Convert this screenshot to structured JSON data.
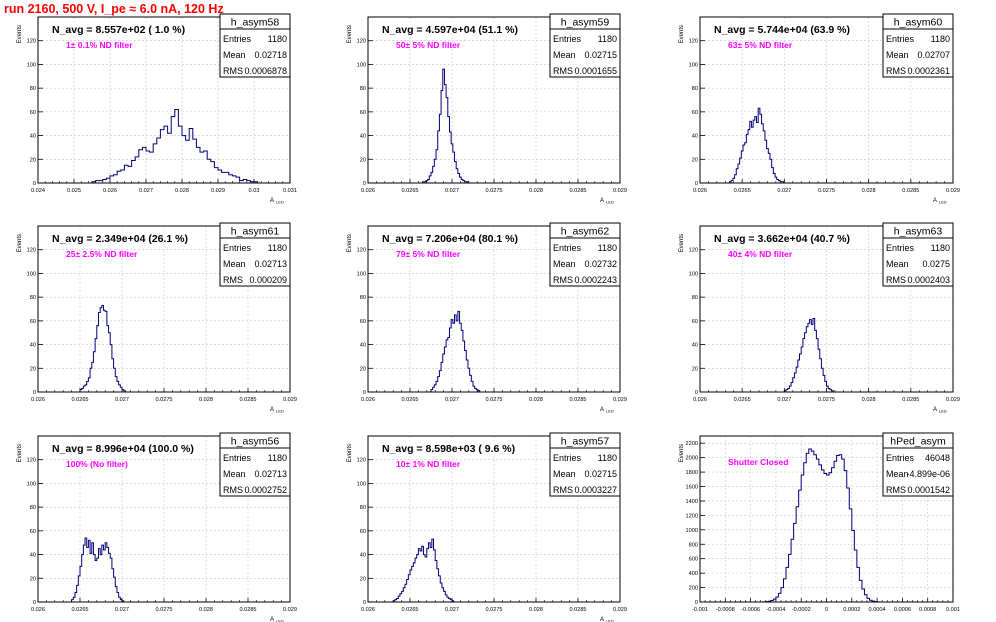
{
  "page": {
    "title": "run 2160,   500 V, I_pe ≈ 6.0 nA, 120 Hz"
  },
  "colors": {
    "histogram_line": "#00007a",
    "annotation_pink": "#ff00ff",
    "title_red": "#ff0000",
    "grid": "#c8c8c8",
    "frame": "#000000"
  },
  "chart_data": [
    {
      "type": "histogram",
      "name": "h_asym58",
      "nlabel": "N_avg = 8.557e+02 ( 1.0 %)",
      "filter": "1± 0.1% ND filter",
      "ylabel": "Events",
      "xlabel": "A",
      "xlabel_sub": "LED",
      "stats": {
        "entries": "1180",
        "mean": "0.02718",
        "rms": "0.0006878"
      },
      "stats_labels": [
        "Entries",
        "Mean",
        "RMS"
      ],
      "xlim": [
        0.024,
        0.031
      ],
      "ylim": [
        0,
        140
      ],
      "xticks": [
        0.024,
        0.025,
        0.026,
        0.027,
        0.028,
        0.029,
        0.03,
        0.031
      ],
      "xtick_labels": [
        "0.024",
        "0.025",
        "0.026",
        "0.027",
        "0.028",
        "0.029",
        "0.03",
        "0.031"
      ],
      "yticks": [
        0,
        20,
        40,
        60,
        80,
        100,
        120
      ],
      "ytick_labels": [
        "0",
        "20",
        "40",
        "60",
        "80",
        "100",
        "120"
      ],
      "bin_start": 0.0255,
      "bin_width": 0.0001,
      "counts": [
        1,
        2,
        2,
        3,
        4,
        6,
        7,
        10,
        11,
        15,
        14,
        19,
        22,
        28,
        30,
        27,
        26,
        33,
        38,
        45,
        48,
        42,
        56,
        62,
        48,
        40,
        36,
        46,
        37,
        30,
        26,
        27,
        20,
        18,
        13,
        11,
        9,
        9,
        7,
        6,
        5,
        2,
        3,
        2,
        1,
        1
      ]
    },
    {
      "type": "histogram",
      "name": "h_asym59",
      "nlabel": "N_avg = 4.597e+04 (51.1 %)",
      "filter": "50± 5% ND filter",
      "ylabel": "Events",
      "xlabel": "A",
      "xlabel_sub": "LED",
      "stats": {
        "entries": "1180",
        "mean": "0.02715",
        "rms": "0.0001655"
      },
      "stats_labels": [
        "Entries",
        "Mean",
        "RMS"
      ],
      "xlim": [
        0.026,
        0.029
      ],
      "ylim": [
        0,
        140
      ],
      "xticks": [
        0.026,
        0.0265,
        0.027,
        0.0275,
        0.028,
        0.0285,
        0.029
      ],
      "xtick_labels": [
        "0.026",
        "0.0265",
        "0.027",
        "0.0275",
        "0.028",
        "0.0285",
        "0.029"
      ],
      "yticks": [
        0,
        20,
        40,
        60,
        80,
        100,
        120
      ],
      "ytick_labels": [
        "0",
        "20",
        "40",
        "60",
        "80",
        "100",
        "120"
      ],
      "bin_start": 0.02665,
      "bin_width": 2e-05,
      "counts": [
        1,
        1,
        2,
        3,
        6,
        9,
        14,
        20,
        28,
        44,
        58,
        78,
        96,
        83,
        72,
        56,
        43,
        33,
        26,
        18,
        12,
        8,
        5,
        3,
        2,
        1,
        1
      ]
    },
    {
      "type": "histogram",
      "name": "h_asym60",
      "nlabel": "N_avg = 5.744e+04 (63.9 %)",
      "filter": "63± 5% ND filter",
      "ylabel": "Events",
      "xlabel": "A",
      "xlabel_sub": "LED",
      "stats": {
        "entries": "1180",
        "mean": "0.02707",
        "rms": "0.0002361"
      },
      "stats_labels": [
        "Entries",
        "Mean",
        "RMS"
      ],
      "xlim": [
        0.026,
        0.029
      ],
      "ylim": [
        0,
        140
      ],
      "xticks": [
        0.026,
        0.0265,
        0.027,
        0.0275,
        0.028,
        0.0285,
        0.029
      ],
      "xtick_labels": [
        "0.026",
        "0.0265",
        "0.027",
        "0.0275",
        "0.028",
        "0.0285",
        "0.029"
      ],
      "yticks": [
        0,
        20,
        40,
        60,
        80,
        100,
        120
      ],
      "ytick_labels": [
        "0",
        "20",
        "40",
        "60",
        "80",
        "100",
        "120"
      ],
      "bin_start": 0.02635,
      "bin_width": 2e-05,
      "counts": [
        1,
        2,
        4,
        7,
        12,
        16,
        21,
        27,
        32,
        34,
        41,
        45,
        52,
        47,
        53,
        56,
        51,
        63,
        58,
        50,
        44,
        36,
        29,
        25,
        20,
        13,
        8,
        5,
        3,
        2,
        1,
        1
      ]
    },
    {
      "type": "histogram",
      "name": "h_asym61",
      "nlabel": "N_avg = 2.349e+04 (26.1 %)",
      "filter": "25± 2.5% ND filter",
      "ylabel": "Events",
      "xlabel": "A",
      "xlabel_sub": "LED",
      "stats": {
        "entries": "1180",
        "mean": "0.02713",
        "rms": "0.000209"
      },
      "stats_labels": [
        "Entries",
        "Mean",
        "RMS"
      ],
      "xlim": [
        0.026,
        0.029
      ],
      "ylim": [
        0,
        140
      ],
      "xticks": [
        0.026,
        0.0265,
        0.027,
        0.0275,
        0.028,
        0.0285,
        0.029
      ],
      "xtick_labels": [
        "0.026",
        "0.0265",
        "0.027",
        "0.0275",
        "0.028",
        "0.0285",
        "0.029"
      ],
      "yticks": [
        0,
        20,
        40,
        60,
        80,
        100,
        120
      ],
      "ytick_labels": [
        "0",
        "20",
        "40",
        "60",
        "80",
        "100",
        "120"
      ],
      "bin_start": 0.0265,
      "bin_width": 2e-05,
      "counts": [
        2,
        3,
        5,
        6,
        9,
        12,
        20,
        25,
        34,
        45,
        56,
        67,
        71,
        73,
        69,
        68,
        56,
        50,
        40,
        28,
        20,
        13,
        9,
        6,
        4,
        2,
        1
      ]
    },
    {
      "type": "histogram",
      "name": "h_asym62",
      "nlabel": "N_avg = 7.206e+04 (80.1 %)",
      "filter": "79± 5% ND filter",
      "ylabel": "Events",
      "xlabel": "A",
      "xlabel_sub": "LED",
      "stats": {
        "entries": "1180",
        "mean": "0.02732",
        "rms": "0.0002243"
      },
      "stats_labels": [
        "Entries",
        "Mean",
        "RMS"
      ],
      "xlim": [
        0.026,
        0.029
      ],
      "ylim": [
        0,
        140
      ],
      "xticks": [
        0.026,
        0.0265,
        0.027,
        0.0275,
        0.028,
        0.0285,
        0.029
      ],
      "xtick_labels": [
        "0.026",
        "0.0265",
        "0.027",
        "0.0275",
        "0.028",
        "0.0285",
        "0.029"
      ],
      "yticks": [
        0,
        20,
        40,
        60,
        80,
        100,
        120
      ],
      "ytick_labels": [
        "0",
        "20",
        "40",
        "60",
        "80",
        "100",
        "120"
      ],
      "bin_start": 0.02675,
      "bin_width": 2e-05,
      "counts": [
        2,
        4,
        6,
        9,
        13,
        18,
        25,
        32,
        38,
        44,
        46,
        54,
        61,
        58,
        65,
        60,
        68,
        58,
        52,
        43,
        35,
        27,
        20,
        14,
        9,
        5,
        3,
        2,
        1
      ]
    },
    {
      "type": "histogram",
      "name": "h_asym63",
      "nlabel": "N_avg = 3.662e+04 (40.7 %)",
      "filter": "40± 4% ND filter",
      "ylabel": "Events",
      "xlabel": "A",
      "xlabel_sub": "LED",
      "stats": {
        "entries": "1180",
        "mean": "0.0275",
        "rms": "0.0002403"
      },
      "stats_labels": [
        "Entries",
        "Mean",
        "RMS"
      ],
      "xlim": [
        0.026,
        0.029
      ],
      "ylim": [
        0,
        140
      ],
      "xticks": [
        0.026,
        0.0265,
        0.027,
        0.0275,
        0.028,
        0.0285,
        0.029
      ],
      "xtick_labels": [
        "0.026",
        "0.0265",
        "0.027",
        "0.0275",
        "0.028",
        "0.0285",
        "0.029"
      ],
      "yticks": [
        0,
        20,
        40,
        60,
        80,
        100,
        120
      ],
      "ytick_labels": [
        "0",
        "20",
        "40",
        "60",
        "80",
        "100",
        "120"
      ],
      "bin_start": 0.027,
      "bin_width": 2e-05,
      "counts": [
        1,
        2,
        3,
        5,
        8,
        12,
        16,
        21,
        27,
        32,
        38,
        45,
        50,
        55,
        58,
        61,
        57,
        62,
        52,
        45,
        36,
        28,
        20,
        14,
        9,
        5,
        3,
        2,
        1
      ]
    },
    {
      "type": "histogram",
      "name": "h_asym56",
      "nlabel": "N_avg = 8.996e+04 (100.0 %)",
      "filter": "100% (No filter)",
      "ylabel": "Events",
      "xlabel": "A",
      "xlabel_sub": "LED",
      "stats": {
        "entries": "1180",
        "mean": "0.02713",
        "rms": "0.0002752"
      },
      "stats_labels": [
        "Entries",
        "Mean",
        "RMS"
      ],
      "xlim": [
        0.026,
        0.029
      ],
      "ylim": [
        0,
        140
      ],
      "xticks": [
        0.026,
        0.0265,
        0.027,
        0.0275,
        0.028,
        0.0285,
        0.029
      ],
      "xtick_labels": [
        "0.026",
        "0.0265",
        "0.027",
        "0.0275",
        "0.028",
        "0.0285",
        "0.029"
      ],
      "yticks": [
        0,
        20,
        40,
        60,
        80,
        100,
        120
      ],
      "ytick_labels": [
        "0",
        "20",
        "40",
        "60",
        "80",
        "100",
        "120"
      ],
      "bin_start": 0.0264,
      "bin_width": 2e-05,
      "counts": [
        2,
        4,
        8,
        14,
        22,
        30,
        40,
        48,
        54,
        46,
        52,
        41,
        50,
        40,
        35,
        37,
        45,
        40,
        48,
        44,
        50,
        46,
        41,
        37,
        28,
        21,
        13,
        8,
        4,
        2,
        1
      ]
    },
    {
      "type": "histogram",
      "name": "h_asym57",
      "nlabel": "N_avg = 8.598e+03 ( 9.6 %)",
      "filter": "10± 1% ND filter",
      "ylabel": "Events",
      "xlabel": "A",
      "xlabel_sub": "LED",
      "stats": {
        "entries": "1180",
        "mean": "0.02715",
        "rms": "0.0003227"
      },
      "stats_labels": [
        "Entries",
        "Mean",
        "RMS"
      ],
      "xlim": [
        0.026,
        0.029
      ],
      "ylim": [
        0,
        140
      ],
      "xticks": [
        0.026,
        0.0265,
        0.027,
        0.0275,
        0.028,
        0.0285,
        0.029
      ],
      "xtick_labels": [
        "0.026",
        "0.0265",
        "0.027",
        "0.0275",
        "0.028",
        "0.0285",
        "0.029"
      ],
      "yticks": [
        0,
        20,
        40,
        60,
        80,
        100,
        120
      ],
      "ytick_labels": [
        "0",
        "20",
        "40",
        "60",
        "80",
        "100",
        "120"
      ],
      "bin_start": 0.0263,
      "bin_width": 2e-05,
      "counts": [
        1,
        2,
        3,
        5,
        7,
        9,
        12,
        15,
        19,
        23,
        27,
        30,
        33,
        37,
        40,
        45,
        43,
        47,
        40,
        38,
        45,
        50,
        46,
        53,
        44,
        35,
        28,
        22,
        16,
        12,
        9,
        6,
        4,
        3,
        2,
        1
      ]
    },
    {
      "type": "histogram",
      "name": "hPed_asym",
      "nlabel": "",
      "filter": "Shutter Closed",
      "ylabel": "Events",
      "xlabel": "",
      "xlabel_sub": "",
      "stats": {
        "entries": "46048",
        "mean": "-4.899e-06",
        "rms": "0.0001542"
      },
      "stats_labels": [
        "Entries",
        "Mean",
        "RMS"
      ],
      "xlim": [
        -0.001,
        0.001
      ],
      "ylim": [
        0,
        2300
      ],
      "xticks": [
        -0.001,
        -0.0008,
        -0.0006,
        -0.0004,
        -0.0002,
        0,
        0.0002,
        0.0004,
        0.0006,
        0.0008,
        0.001
      ],
      "xtick_labels": [
        "-0.001",
        "-0.0008",
        "-0.0006",
        "-0.0004",
        "-0.0002",
        "0",
        "0.0002",
        "0.0004",
        "0.0006",
        "0.0008",
        "0.001"
      ],
      "yticks": [
        0,
        200,
        400,
        600,
        800,
        1000,
        1200,
        1400,
        1600,
        1800,
        2000,
        2200
      ],
      "ytick_labels": [
        "0",
        "200",
        "400",
        "600",
        "800",
        "1000",
        "1200",
        "1400",
        "1600",
        "1800",
        "2000",
        "2200"
      ],
      "bin_start": -0.0005,
      "bin_width": 2e-05,
      "counts": [
        2,
        5,
        10,
        20,
        40,
        70,
        120,
        200,
        320,
        480,
        660,
        870,
        1090,
        1320,
        1550,
        1760,
        1930,
        2060,
        2120,
        2090,
        2040,
        1980,
        1900,
        1830,
        1780,
        1760,
        1790,
        1860,
        1950,
        2030,
        2040,
        1980,
        1820,
        1580,
        1290,
        990,
        720,
        480,
        300,
        180,
        100,
        50,
        25,
        12,
        5,
        2
      ]
    }
  ]
}
